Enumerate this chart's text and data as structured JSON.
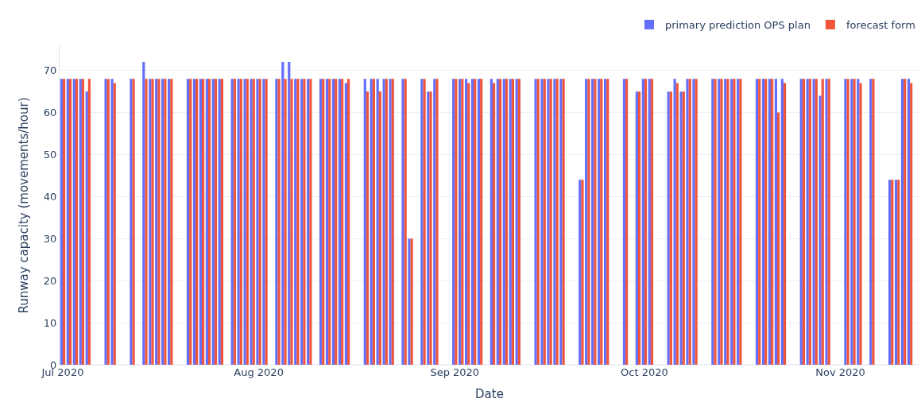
{
  "chart_data": {
    "type": "bar",
    "xlabel": "Date",
    "ylabel": "Runway capacity (movements/hour)",
    "x": [
      "2020-07-01",
      "2020-07-02",
      "2020-07-03",
      "2020-07-04",
      "2020-07-05",
      "2020-07-08",
      "2020-07-09",
      "2020-07-12",
      "2020-07-14",
      "2020-07-15",
      "2020-07-16",
      "2020-07-17",
      "2020-07-18",
      "2020-07-21",
      "2020-07-22",
      "2020-07-23",
      "2020-07-24",
      "2020-07-25",
      "2020-07-26",
      "2020-07-28",
      "2020-07-29",
      "2020-07-30",
      "2020-07-31",
      "2020-08-01",
      "2020-08-02",
      "2020-08-04",
      "2020-08-05",
      "2020-08-06",
      "2020-08-07",
      "2020-08-08",
      "2020-08-09",
      "2020-08-11",
      "2020-08-12",
      "2020-08-13",
      "2020-08-14",
      "2020-08-15",
      "2020-08-18",
      "2020-08-19",
      "2020-08-20",
      "2020-08-21",
      "2020-08-22",
      "2020-08-24",
      "2020-08-25",
      "2020-08-27",
      "2020-08-28",
      "2020-08-29",
      "2020-09-01",
      "2020-09-02",
      "2020-09-03",
      "2020-09-04",
      "2020-09-05",
      "2020-09-07",
      "2020-09-08",
      "2020-09-09",
      "2020-09-10",
      "2020-09-11",
      "2020-09-14",
      "2020-09-15",
      "2020-09-16",
      "2020-09-17",
      "2020-09-18",
      "2020-09-21",
      "2020-09-22",
      "2020-09-23",
      "2020-09-24",
      "2020-09-25",
      "2020-09-28",
      "2020-09-30",
      "2020-10-01",
      "2020-10-02",
      "2020-10-05",
      "2020-10-06",
      "2020-10-07",
      "2020-10-08",
      "2020-10-09",
      "2020-10-12",
      "2020-10-13",
      "2020-10-14",
      "2020-10-15",
      "2020-10-16",
      "2020-10-19",
      "2020-10-20",
      "2020-10-21",
      "2020-10-22",
      "2020-10-23",
      "2020-10-26",
      "2020-10-27",
      "2020-10-28",
      "2020-10-29",
      "2020-10-30",
      "2020-11-02",
      "2020-11-03",
      "2020-11-04",
      "2020-11-06",
      "2020-11-09",
      "2020-11-10",
      "2020-11-11",
      "2020-11-12"
    ],
    "series": [
      {
        "name": "primary prediction OPS plan",
        "color": "#636efa",
        "values": [
          68,
          68,
          68,
          68,
          65,
          68,
          68,
          68,
          72,
          68,
          68,
          68,
          68,
          68,
          68,
          68,
          68,
          68,
          68,
          68,
          68,
          68,
          68,
          68,
          68,
          68,
          72,
          72,
          68,
          68,
          68,
          68,
          68,
          68,
          68,
          67,
          68,
          68,
          68,
          68,
          68,
          68,
          30,
          68,
          65,
          68,
          68,
          68,
          68,
          68,
          68,
          68,
          68,
          68,
          68,
          68,
          68,
          68,
          68,
          68,
          68,
          44,
          68,
          68,
          68,
          68,
          68,
          65,
          68,
          68,
          65,
          68,
          65,
          68,
          68,
          68,
          68,
          68,
          68,
          68,
          68,
          68,
          68,
          68,
          68,
          68,
          68,
          68,
          64,
          68,
          68,
          68,
          68,
          68,
          44,
          44,
          68,
          68
        ]
      },
      {
        "name": "forecast form",
        "color": "#ef553b",
        "values": [
          68,
          68,
          68,
          68,
          68,
          68,
          67,
          68,
          68,
          68,
          68,
          68,
          68,
          68,
          68,
          68,
          68,
          68,
          68,
          68,
          68,
          68,
          68,
          68,
          68,
          68,
          68,
          68,
          68,
          68,
          68,
          68,
          68,
          68,
          68,
          68,
          65,
          68,
          65,
          68,
          68,
          68,
          30,
          68,
          65,
          68,
          68,
          68,
          67,
          68,
          68,
          67,
          68,
          68,
          68,
          68,
          68,
          68,
          68,
          68,
          68,
          44,
          68,
          68,
          68,
          68,
          68,
          65,
          68,
          68,
          65,
          67,
          65,
          68,
          68,
          68,
          68,
          68,
          68,
          68,
          68,
          68,
          68,
          60,
          67,
          68,
          68,
          68,
          68,
          68,
          68,
          68,
          67,
          68,
          44,
          44,
          68,
          67
        ]
      }
    ],
    "xlim": [
      "2020-06-30T12:00",
      "2020-11-13T12:00"
    ],
    "xticks": [
      {
        "value": "2020-07-01",
        "label": "Jul 2020"
      },
      {
        "value": "2020-08-01",
        "label": "Aug 2020"
      },
      {
        "value": "2020-09-01",
        "label": "Sep 2020"
      },
      {
        "value": "2020-10-01",
        "label": "Oct 2020"
      },
      {
        "value": "2020-11-01",
        "label": "Nov 2020"
      }
    ],
    "ylim": [
      0,
      75.8
    ],
    "yticks": [
      0,
      10,
      20,
      30,
      40,
      50,
      60,
      70
    ],
    "grid": "y",
    "legend": "top right"
  }
}
